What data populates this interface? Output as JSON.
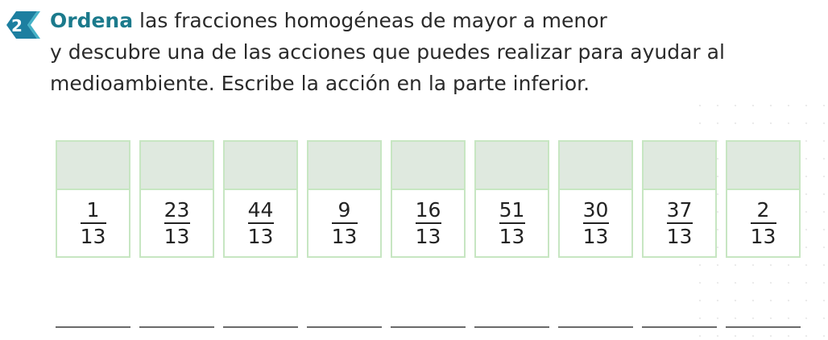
{
  "exercise": {
    "number": "2",
    "verb": "Ordena",
    "line1_rest": " las fracciones homogéneas de mayor a menor",
    "line2": "y descubre una de las acciones que puedes realizar para ayudar al",
    "line3": "medioambiente. Escribe la acción en la parte inferior."
  },
  "cards": [
    {
      "numerator": "1",
      "denominator": "13"
    },
    {
      "numerator": "23",
      "denominator": "13"
    },
    {
      "numerator": "44",
      "denominator": "13"
    },
    {
      "numerator": "9",
      "denominator": "13"
    },
    {
      "numerator": "16",
      "denominator": "13"
    },
    {
      "numerator": "51",
      "denominator": "13"
    },
    {
      "numerator": "30",
      "denominator": "13"
    },
    {
      "numerator": "37",
      "denominator": "13"
    },
    {
      "numerator": "2",
      "denominator": "13"
    }
  ],
  "colors": {
    "accent": "#1b7a8c",
    "badge": "#1d7fa0",
    "card_border": "#c7e6c2",
    "card_slot": "#dfe9df"
  }
}
